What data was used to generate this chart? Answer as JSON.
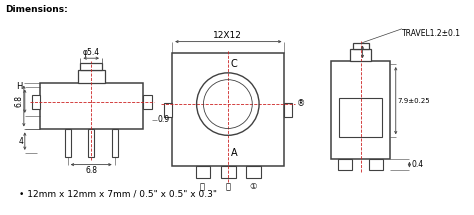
{
  "title": "Dimensions:",
  "background": "#ffffff",
  "line_color": "#404040",
  "dashed_color": "#cc2222",
  "text_color": "#000000",
  "bottom_text": "12mm x 12mm x 7mm / 0.5\" x 0.5\" x 0.3\"",
  "labels": {
    "phi54": "φ5.4",
    "12x12": "12X12",
    "travel": "TRAVEL1.2±0.1",
    "H": "H",
    "6_8_side": "6.8",
    "4": "4",
    "0_9": "0.9",
    "6_8_bot": "6.8",
    "C": "C",
    "A": "A",
    "circ2": "®",
    "7_9": "7.9±0.25",
    "0_4": "0.4",
    "pin6": "Ⓐ",
    "pinP": "ⓟ",
    "pin1": "①"
  }
}
